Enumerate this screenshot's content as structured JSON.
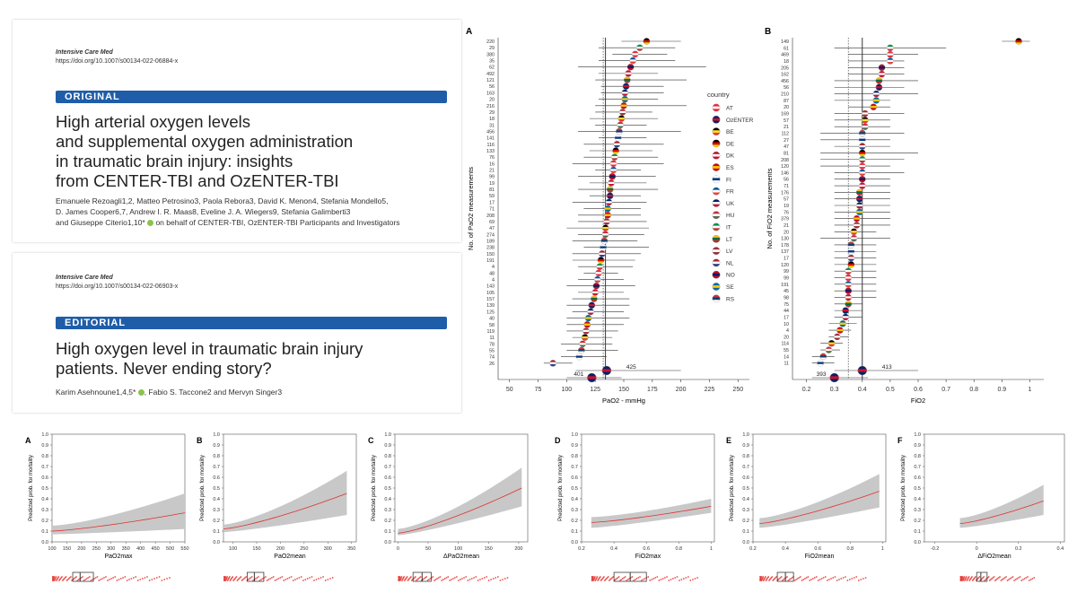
{
  "original": {
    "journal": "Intensive Care Med",
    "doi": "https://doi.org/10.1007/s00134-022-06884-x",
    "type": "ORIGINAL",
    "title_lines": [
      "High arterial oxygen levels",
      "and supplemental oxygen administration",
      "in traumatic brain injury: insights",
      "from CENTER-TBI and OzENTER-TBI"
    ],
    "authors_line1": "Emanuele Rezoagli1,2, Matteo Petrosino3, Paola Rebora3, David K. Menon4, Stefania Mondello5,",
    "authors_line2": "D. James Cooper6,7, Andrew I. R. Maas8, Eveline J. A. Wiegers9, Stefania Galimberti3",
    "authors_line3": "and Giuseppe Citerio1,10*",
    "authors_line3b": " on behalf of CENTER-TBI, OzENTER-TBI Participants and Investigators"
  },
  "editorial": {
    "journal": "Intensive Care Med",
    "doi": "https://doi.org/10.1007/s00134-022-06903-x",
    "type": "EDITORIAL",
    "title_lines": [
      "High oxygen level in traumatic brain injury",
      "patients. Never ending story?"
    ],
    "authors": "Karim Asehnoune1,4,5*",
    "authors_b": ", Fabio S. Taccone2 and Mervyn Singer3"
  },
  "chart_data": [
    {
      "panel": "A",
      "type": "scatter",
      "xlabel": "PaO2 - mmHg",
      "ylabel": "No. of PaO2 measurements",
      "xlim": [
        40,
        260
      ],
      "xticks": [
        50,
        75,
        100,
        125,
        150,
        175,
        200,
        225,
        250
      ],
      "reference_line": 134,
      "dotted_line": 132,
      "n_labels": [
        "220",
        "29",
        "380",
        "35",
        "62",
        "492",
        "121",
        "56",
        "163",
        "20",
        "216",
        "29",
        "18",
        "31",
        "456",
        "141",
        "116",
        "133",
        "76",
        "16",
        "21",
        "99",
        "19",
        "81",
        "59",
        "17",
        "71",
        "208",
        "69",
        "47",
        "274",
        "189",
        "238",
        "150",
        "191",
        "4",
        "48",
        "4",
        "143",
        "105",
        "157",
        "139",
        "125",
        "40",
        "58",
        "119",
        "11",
        "78",
        "55",
        "74",
        "26"
      ],
      "means": [
        170,
        164,
        160,
        158,
        156,
        154,
        153,
        152,
        151,
        151,
        150,
        149,
        148,
        147,
        146,
        145,
        144,
        143,
        142,
        141,
        141,
        140,
        139,
        138,
        138,
        137,
        136,
        136,
        135,
        134,
        134,
        133,
        132,
        131,
        130,
        129,
        128,
        127,
        126,
        125,
        124,
        122,
        121,
        119,
        118,
        117,
        116,
        114,
        113,
        111,
        88
      ],
      "lower": [
        148,
        128,
        140,
        128,
        110,
        128,
        125,
        130,
        130,
        128,
        125,
        125,
        120,
        125,
        110,
        128,
        115,
        120,
        115,
        105,
        125,
        110,
        120,
        110,
        120,
        105,
        115,
        110,
        110,
        100,
        110,
        105,
        115,
        105,
        105,
        110,
        115,
        110,
        100,
        110,
        105,
        100,
        105,
        100,
        100,
        100,
        105,
        95,
        100,
        95,
        80
      ],
      "upper": [
        200,
        195,
        188,
        195,
        222,
        180,
        205,
        185,
        185,
        180,
        205,
        175,
        180,
        170,
        200,
        170,
        185,
        175,
        180,
        185,
        165,
        178,
        170,
        180,
        165,
        170,
        165,
        165,
        170,
        172,
        168,
        162,
        172,
        165,
        160,
        158,
        145,
        150,
        160,
        150,
        155,
        155,
        150,
        155,
        150,
        145,
        140,
        140,
        145,
        135,
        105
      ],
      "pooled": [
        {
          "n": "425",
          "mean": 135,
          "lower": 108,
          "upper": 200
        },
        {
          "n": "401",
          "mean": 122,
          "lower": 100,
          "upper": 148
        }
      ],
      "legend_title": "country",
      "legend": [
        "AT",
        "OzENTER",
        "BE",
        "DE",
        "DK",
        "ES",
        "FI",
        "FR",
        "UK",
        "HU",
        "IT",
        "LT",
        "LV",
        "NL",
        "NO",
        "SE",
        "RS"
      ]
    },
    {
      "panel": "B",
      "type": "scatter",
      "xlabel": "FiO2",
      "ylabel": "No. of FiO2 measurements",
      "xlim": [
        0.15,
        1.05
      ],
      "xticks": [
        0.2,
        0.3,
        0.4,
        0.5,
        0.6,
        0.7,
        0.8,
        0.9,
        1.0
      ],
      "xtick_labels": [
        "0.2",
        "0.3",
        "0.4",
        "0.5",
        "0.6",
        "0.7",
        "0.8",
        "0.9",
        "1"
      ],
      "reference_line": 0.4,
      "dotted_line": 0.35,
      "n_labels": [
        "149",
        "61",
        "469",
        "18",
        "205",
        "162",
        "456",
        "56",
        "210",
        "87",
        "20",
        "169",
        "57",
        "21",
        "112",
        "27",
        "47",
        "81",
        "208",
        "120",
        "146",
        "56",
        "71",
        "176",
        "57",
        "19",
        "76",
        "379",
        "21",
        "20",
        "130",
        "178",
        "137",
        "17",
        "120",
        "99",
        "99",
        "191",
        "45",
        "98",
        "75",
        "44",
        "17",
        "10",
        "4",
        "20",
        "114",
        "55",
        "14",
        "11"
      ],
      "means": [
        0.96,
        0.5,
        0.5,
        0.5,
        0.47,
        0.47,
        0.46,
        0.46,
        0.45,
        0.45,
        0.44,
        0.41,
        0.41,
        0.41,
        0.4,
        0.4,
        0.4,
        0.4,
        0.4,
        0.4,
        0.4,
        0.4,
        0.4,
        0.39,
        0.39,
        0.39,
        0.39,
        0.38,
        0.38,
        0.37,
        0.37,
        0.36,
        0.36,
        0.36,
        0.36,
        0.35,
        0.35,
        0.35,
        0.35,
        0.35,
        0.35,
        0.34,
        0.34,
        0.33,
        0.32,
        0.31,
        0.29,
        0.28,
        0.26,
        0.25
      ],
      "lower": [
        0.9,
        0.3,
        0.35,
        0.35,
        0.35,
        0.35,
        0.3,
        0.3,
        0.3,
        0.3,
        0.35,
        0.3,
        0.3,
        0.3,
        0.25,
        0.25,
        0.3,
        0.25,
        0.25,
        0.25,
        0.3,
        0.3,
        0.3,
        0.3,
        0.3,
        0.3,
        0.3,
        0.3,
        0.3,
        0.3,
        0.25,
        0.3,
        0.3,
        0.3,
        0.3,
        0.3,
        0.3,
        0.3,
        0.3,
        0.3,
        0.3,
        0.3,
        0.3,
        0.28,
        0.28,
        0.28,
        0.25,
        0.25,
        0.22,
        0.22
      ],
      "upper": [
        1.0,
        0.7,
        0.6,
        0.55,
        0.55,
        0.55,
        0.6,
        0.55,
        0.6,
        0.5,
        0.5,
        0.55,
        0.5,
        0.5,
        0.55,
        0.5,
        0.5,
        0.6,
        0.55,
        0.5,
        0.55,
        0.5,
        0.5,
        0.5,
        0.5,
        0.5,
        0.5,
        0.5,
        0.5,
        0.45,
        0.5,
        0.45,
        0.45,
        0.45,
        0.45,
        0.45,
        0.45,
        0.45,
        0.45,
        0.45,
        0.4,
        0.4,
        0.4,
        0.38,
        0.36,
        0.35,
        0.33,
        0.32,
        0.3,
        0.3
      ],
      "pooled": [
        {
          "n": "413",
          "mean": 0.4,
          "lower": 0.3,
          "upper": 0.6
        },
        {
          "n": "393",
          "mean": 0.3,
          "lower": 0.22,
          "upper": 0.42
        }
      ]
    },
    {
      "panel": "A",
      "type": "line",
      "xlabel": "PaO2max",
      "ylabel": "Predicted prob. for mortality",
      "xlim": [
        100,
        550
      ],
      "xticks": [
        100,
        150,
        200,
        250,
        300,
        350,
        400,
        450,
        500,
        550
      ],
      "ylim": [
        0,
        1
      ],
      "x": [
        100,
        550
      ],
      "y": [
        0.1,
        0.27
      ],
      "ci_lower": [
        0.07,
        0.12
      ],
      "ci_upper": [
        0.15,
        0.45
      ],
      "box": [
        170,
        195,
        240
      ]
    },
    {
      "panel": "B",
      "type": "line",
      "xlabel": "PaO2mean",
      "ylabel": "Predicted prob. for mortality",
      "xlim": [
        80,
        360
      ],
      "xticks": [
        100,
        150,
        200,
        250,
        300,
        350
      ],
      "ylim": [
        0,
        1
      ],
      "x": [
        80,
        340
      ],
      "y": [
        0.12,
        0.45
      ],
      "ci_lower": [
        0.09,
        0.25
      ],
      "ci_upper": [
        0.16,
        0.66
      ],
      "box": [
        130,
        145,
        165
      ]
    },
    {
      "panel": "C",
      "type": "line",
      "xlabel": "ΔPaO2mean",
      "ylabel": "Predicted prob. for mortality",
      "xlim": [
        -5,
        215
      ],
      "xticks": [
        0,
        50,
        100,
        150,
        200
      ],
      "ylim": [
        0,
        1
      ],
      "x": [
        0,
        205
      ],
      "y": [
        0.08,
        0.5
      ],
      "ci_lower": [
        0.06,
        0.33
      ],
      "ci_upper": [
        0.12,
        0.69
      ],
      "box": [
        25,
        40,
        55
      ]
    },
    {
      "panel": "D",
      "type": "line",
      "xlabel": "FiO2max",
      "ylabel": "Predicted prob. for mortality",
      "xlim": [
        0.2,
        1.02
      ],
      "xticks": [
        0.2,
        0.4,
        0.6,
        0.8,
        1.0
      ],
      "ylim": [
        0,
        1
      ],
      "x": [
        0.26,
        1.0
      ],
      "y": [
        0.18,
        0.33
      ],
      "ci_lower": [
        0.13,
        0.27
      ],
      "ci_upper": [
        0.23,
        0.4
      ],
      "box": [
        0.4,
        0.5,
        0.6
      ]
    },
    {
      "panel": "E",
      "type": "line",
      "xlabel": "FiO2mean",
      "ylabel": "Predicted prob. for mortality",
      "xlim": [
        0.2,
        1.02
      ],
      "xticks": [
        0.2,
        0.4,
        0.6,
        0.8,
        1.0
      ],
      "ylim": [
        0,
        1
      ],
      "x": [
        0.24,
        0.98
      ],
      "y": [
        0.17,
        0.47
      ],
      "ci_lower": [
        0.13,
        0.32
      ],
      "ci_upper": [
        0.22,
        0.63
      ],
      "box": [
        0.35,
        0.4,
        0.45
      ]
    },
    {
      "panel": "F",
      "type": "line",
      "xlabel": "ΔFiO2mean",
      "ylabel": "Predicted prob. for mortality",
      "xlim": [
        -0.25,
        0.42
      ],
      "xticks": [
        -0.2,
        0.0,
        0.2,
        0.4
      ],
      "xtick_labels": [
        "-0.2",
        "0",
        "0.2",
        "0.4"
      ],
      "ylim": [
        0,
        1
      ],
      "x": [
        -0.08,
        0.32
      ],
      "y": [
        0.17,
        0.38
      ],
      "ci_lower": [
        0.13,
        0.25
      ],
      "ci_upper": [
        0.22,
        0.53
      ],
      "box": [
        0.0,
        0.02,
        0.05
      ]
    }
  ],
  "colors": {
    "accent": "#1f5da8",
    "ci": "#c8c8c8",
    "fit": "#e03030",
    "points": "#e53935"
  },
  "flags": {
    "AT": [
      "#ed2939",
      "#ffffff",
      "#ed2939"
    ],
    "OzENTER": [
      "#012169",
      "#c8102e",
      "#012169"
    ],
    "BE": [
      "#000000",
      "#fdda24",
      "#ef3340"
    ],
    "DE": [
      "#000000",
      "#dd0000",
      "#ffce00"
    ],
    "DK": [
      "#c8102e",
      "#ffffff",
      "#c8102e"
    ],
    "ES": [
      "#c60b1e",
      "#ffc400",
      "#c60b1e"
    ],
    "FI": [
      "#ffffff",
      "#003580",
      "#ffffff"
    ],
    "FR": [
      "#0055a4",
      "#ffffff",
      "#ef4135"
    ],
    "UK": [
      "#012169",
      "#ffffff",
      "#c8102e"
    ],
    "HU": [
      "#ce2939",
      "#ffffff",
      "#477050"
    ],
    "IT": [
      "#009246",
      "#ffffff",
      "#ce2b37"
    ],
    "LT": [
      "#fdb913",
      "#006a44",
      "#c1272d"
    ],
    "LV": [
      "#9e3039",
      "#ffffff",
      "#9e3039"
    ],
    "NL": [
      "#ae1c28",
      "#ffffff",
      "#21468b"
    ],
    "NO": [
      "#ba0c2f",
      "#00205b",
      "#ba0c2f"
    ],
    "SE": [
      "#006aa7",
      "#fecc00",
      "#006aa7"
    ],
    "RS": [
      "#c6363c",
      "#0c4076",
      "#ffffff"
    ]
  }
}
